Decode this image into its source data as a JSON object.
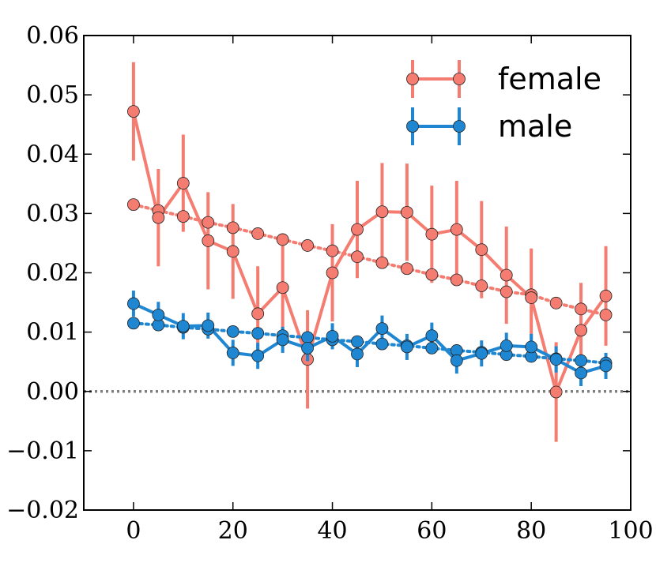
{
  "chart_data": {
    "type": "line",
    "title": "",
    "xlabel": "",
    "ylabel": "",
    "xlim": [
      -10,
      100
    ],
    "ylim": [
      -0.02,
      0.06
    ],
    "xticks": [
      0,
      20,
      40,
      60,
      80,
      100
    ],
    "xtick_labels": [
      "0",
      "20",
      "40",
      "60",
      "80",
      "100"
    ],
    "yticks": [
      -0.02,
      -0.01,
      0.0,
      0.01,
      0.02,
      0.03,
      0.04,
      0.05,
      0.06
    ],
    "ytick_labels": [
      "−0.02",
      "−0.01",
      "0.00",
      "0.01",
      "0.02",
      "0.03",
      "0.04",
      "0.05",
      "0.06"
    ],
    "grid": false,
    "legend_position": "top-right",
    "reference_line": {
      "y": 0.0,
      "style": "dotted",
      "color": "#808080"
    },
    "series": [
      {
        "name": "female",
        "color": "#f47c70",
        "observed": {
          "x": [
            0,
            5,
            10,
            15,
            20,
            25,
            30,
            35,
            40,
            45,
            50,
            55,
            60,
            65,
            70,
            75,
            80,
            85,
            90,
            95
          ],
          "y": [
            0.0472,
            0.0293,
            0.0351,
            0.0254,
            0.0236,
            0.0131,
            0.0175,
            0.0054,
            0.02,
            0.0273,
            0.0303,
            0.0302,
            0.0265,
            0.0273,
            0.0239,
            0.0196,
            0.0158,
            -0.0001,
            0.0103,
            0.0161
          ],
          "err": [
            0.0083,
            0.0082,
            0.0082,
            0.0082,
            0.008,
            0.008,
            0.008,
            0.0083,
            0.0082,
            0.0082,
            0.0082,
            0.0082,
            0.0082,
            0.0082,
            0.0082,
            0.0082,
            0.0083,
            0.0084,
            0.008,
            0.0084
          ]
        },
        "trend": {
          "x": [
            0,
            5,
            10,
            15,
            20,
            25,
            30,
            35,
            40,
            45,
            50,
            55,
            60,
            65,
            70,
            75,
            80,
            85,
            90,
            95
          ],
          "y": [
            0.0315,
            0.0305,
            0.0295,
            0.0285,
            0.0276,
            0.0266,
            0.0256,
            0.0246,
            0.0237,
            0.0227,
            0.0217,
            0.0207,
            0.0197,
            0.0188,
            0.0178,
            0.0168,
            0.0163,
            0.0149,
            0.0139,
            0.0129
          ]
        }
      },
      {
        "name": "male",
        "color": "#1f87d2",
        "observed": {
          "x": [
            0,
            5,
            10,
            15,
            20,
            25,
            30,
            35,
            40,
            45,
            50,
            55,
            60,
            65,
            70,
            75,
            80,
            85,
            90,
            95
          ],
          "y": [
            0.0148,
            0.0129,
            0.011,
            0.0111,
            0.0065,
            0.006,
            0.0087,
            0.0073,
            0.0093,
            0.0063,
            0.0106,
            0.0075,
            0.0094,
            0.0052,
            0.0064,
            0.0077,
            0.0075,
            0.0054,
            0.0031,
            0.0043
          ],
          "err": [
            0.0022,
            0.0022,
            0.0022,
            0.0022,
            0.0022,
            0.0022,
            0.0022,
            0.0022,
            0.0022,
            0.0022,
            0.0022,
            0.0022,
            0.0022,
            0.0022,
            0.0022,
            0.0022,
            0.0022,
            0.0022,
            0.0022,
            0.0022
          ]
        },
        "trend": {
          "x": [
            0,
            5,
            10,
            15,
            20,
            25,
            30,
            35,
            40,
            45,
            50,
            55,
            60,
            65,
            70,
            75,
            80,
            85,
            90,
            95
          ],
          "y": [
            0.0115,
            0.0112,
            0.0108,
            0.0105,
            0.0101,
            0.0098,
            0.0094,
            0.0091,
            0.0087,
            0.0084,
            0.008,
            0.0077,
            0.0073,
            0.0069,
            0.0066,
            0.0062,
            0.0059,
            0.0055,
            0.0052,
            0.0048
          ]
        }
      }
    ]
  }
}
